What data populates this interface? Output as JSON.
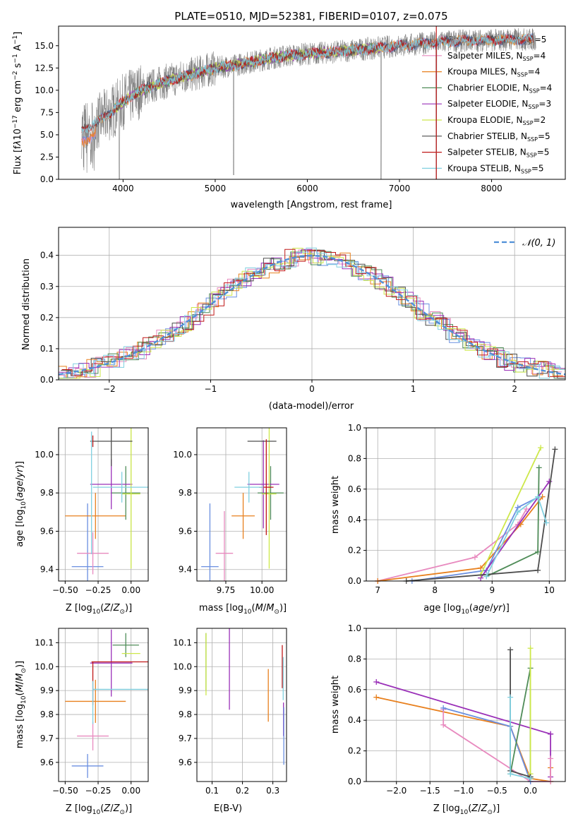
{
  "palette": {
    "chabrier_miles": "#6a8fe0",
    "salpeter_miles": "#e88abf",
    "kroupa_miles": "#e8801e",
    "chabrier_elodie": "#4f8c58",
    "salpeter_elodie": "#9a30b8",
    "kroupa_elodie": "#cde84a",
    "chabrier_stelib": "#4d4d4d",
    "salpeter_stelib": "#c01818",
    "kroupa_stelib": "#80d0e0",
    "spectrum": "#808080",
    "normal": "#5090d8",
    "grid": "#b0b0b0"
  },
  "legend_entries": [
    {
      "pre": "Chabrier MILES, N",
      "sub": "SSP",
      "post": "=5"
    },
    {
      "pre": "Salpeter MILES, N",
      "sub": "SSP",
      "post": "=4"
    },
    {
      "pre": "Kroupa MILES, N",
      "sub": "SSP",
      "post": "=4"
    },
    {
      "pre": "Chabrier ELODIE, N",
      "sub": "SSP",
      "post": "=4"
    },
    {
      "pre": "Salpeter ELODIE, N",
      "sub": "SSP",
      "post": "=3"
    },
    {
      "pre": "Kroupa ELODIE, N",
      "sub": "SSP",
      "post": "=2"
    },
    {
      "pre": "Chabrier STELIB, N",
      "sub": "SSP",
      "post": "=5"
    },
    {
      "pre": "Salpeter STELIB, N",
      "sub": "SSP",
      "post": "=5"
    },
    {
      "pre": "Kroupa STELIB, N",
      "sub": "SSP",
      "post": "=5"
    }
  ],
  "chart_data": [
    {
      "type": "line",
      "title": "PLATE=0510, MJD=52381, FIBERID=0107, z=0.075",
      "xlabel": "wavelength [Angstrom, rest frame]",
      "ylabel": "Flux [f_λ 10^-17 erg cm^-2 s^-1 A^-1]",
      "xlim": [
        3300,
        8800
      ],
      "ylim": [
        0,
        17.2
      ],
      "xticks": [
        "4000",
        "5000",
        "6000",
        "7000",
        "8000"
      ],
      "yticks": [
        "0.0",
        "2.5",
        "5.0",
        "7.5",
        "10.0",
        "12.5",
        "15.0"
      ],
      "continuum_x": [
        3550,
        3700,
        3800,
        3900,
        4000,
        4100,
        4200,
        4400,
        4600,
        4800,
        5000,
        5200,
        5400,
        5600,
        5800,
        6000,
        6200,
        6400,
        6600,
        6800,
        7000,
        7200,
        7400,
        7600,
        7800,
        8000,
        8200,
        8400
      ],
      "continuum_y": [
        5.5,
        6.3,
        7.0,
        7.8,
        8.7,
        9.4,
        10.0,
        10.8,
        11.4,
        11.9,
        12.5,
        12.8,
        13.2,
        13.6,
        13.9,
        14.1,
        14.2,
        14.4,
        14.6,
        14.8,
        15.0,
        15.2,
        15.4,
        15.5,
        15.6,
        15.6,
        15.7,
        15.7
      ],
      "spike_x": [
        3960,
        5200,
        6800,
        7400
      ],
      "spike_y": [
        0.0,
        0.5,
        0.0,
        0.0
      ],
      "legend": "upper-right",
      "grid": false
    },
    {
      "type": "histogram",
      "xlabel": "(data-model)/error",
      "ylabel": "Normed distribution",
      "xlim": [
        -2.5,
        2.5
      ],
      "ylim": [
        0,
        0.49
      ],
      "xticks": [
        "−2",
        "−1",
        "0",
        "1",
        "2"
      ],
      "yticks": [
        "0.0",
        "0.1",
        "0.2",
        "0.3",
        "0.4"
      ],
      "bin_edges_start": -2.5,
      "bin_width": 0.1,
      "normal_label_text": "N(0, 1)",
      "legend": "upper-right",
      "grid": true
    },
    {
      "type": "scatter",
      "xlabel": "Z [log10(Z/Z⊙)]",
      "ylabel": "age  [log10(age/yr)]",
      "xlim": [
        -0.55,
        0.13
      ],
      "ylim": [
        9.34,
        10.14
      ],
      "xticks": [
        {
          "v": -0.5,
          "t": "−0.50"
        },
        {
          "v": -0.25,
          "t": "−0.25"
        },
        {
          "v": 0.0,
          "t": "0.00"
        }
      ],
      "yticks": [
        {
          "v": 9.4,
          "t": "9.4"
        },
        {
          "v": 9.6,
          "t": "9.6"
        },
        {
          "v": 9.8,
          "t": "9.8"
        },
        {
          "v": 10.0,
          "t": "10.0"
        }
      ],
      "points": [
        {
          "s": "chabrier_miles",
          "x": -0.33,
          "y": 9.415,
          "xerr": 0.12,
          "yerr": 0.33
        },
        {
          "s": "salpeter_miles",
          "x": -0.29,
          "y": 9.485,
          "xerr": 0.12,
          "yerr": 0.11
        },
        {
          "s": "kroupa_miles",
          "x": -0.27,
          "y": 9.68,
          "xerr": 0.23,
          "yerr": 0.12
        },
        {
          "s": "chabrier_elodie",
          "x": -0.04,
          "y": 9.8,
          "xerr": 0.11,
          "yerr": 0.14
        },
        {
          "s": "salpeter_elodie",
          "x": -0.15,
          "y": 9.845,
          "xerr": 0.16,
          "yerr": 0.13
        },
        {
          "s": "kroupa_elodie",
          "x": 0.0,
          "y": 9.795,
          "xerr": 0.07,
          "yerr": 0.39
        },
        {
          "s": "chabrier_stelib",
          "x": -0.15,
          "y": 10.07,
          "xerr": 0.16,
          "yerr": 0.13
        },
        {
          "s": "salpeter_stelib",
          "x": -0.29,
          "y": 10.07,
          "xerr": 0.0,
          "yerr": 0.03
        },
        {
          "s": "kroupa_stelib",
          "x": -0.07,
          "y": 9.83,
          "xerr": 0.22,
          "yerr": 0.08
        },
        {
          "s": "kroupa_stelib",
          "x": -0.3,
          "y": 9.8,
          "xerr": 0.0,
          "yerr": 0.32
        }
      ],
      "grid": true
    },
    {
      "type": "scatter",
      "xlabel": "mass [log10(M/M⊙)]",
      "ylabel": "",
      "xlim": [
        9.55,
        10.17
      ],
      "ylim": [
        9.34,
        10.14
      ],
      "xticks": [
        {
          "v": 9.75,
          "t": "9.75"
        },
        {
          "v": 10.0,
          "t": "10.00"
        }
      ],
      "yticks": [
        {
          "v": 9.4,
          "t": "9.4"
        },
        {
          "v": 9.6,
          "t": "9.6"
        },
        {
          "v": 9.8,
          "t": "9.8"
        },
        {
          "v": 10.0,
          "t": "10.0"
        }
      ],
      "points": [
        {
          "s": "chabrier_miles",
          "x": 9.64,
          "y": 9.415,
          "xerr": 0.06,
          "yerr": 0.33
        },
        {
          "s": "salpeter_miles",
          "x": 9.74,
          "y": 9.485,
          "xerr": 0.06,
          "yerr": 0.22
        },
        {
          "s": "kroupa_miles",
          "x": 9.87,
          "y": 9.68,
          "xerr": 0.08,
          "yerr": 0.12
        },
        {
          "s": "chabrier_elodie",
          "x": 10.06,
          "y": 9.8,
          "xerr": 0.09,
          "yerr": 0.14
        },
        {
          "s": "salpeter_elodie",
          "x": 10.01,
          "y": 9.845,
          "xerr": 0.11,
          "yerr": 0.23
        },
        {
          "s": "kroupa_elodie",
          "x": 10.05,
          "y": 9.795,
          "xerr": 0.05,
          "yerr": 0.39
        },
        {
          "s": "chabrier_stelib",
          "x": 10.0,
          "y": 10.07,
          "xerr": 0.1,
          "yerr": 0.0
        },
        {
          "s": "salpeter_stelib",
          "x": 10.03,
          "y": 9.83,
          "xerr": 0.05,
          "yerr": 0.25
        },
        {
          "s": "kroupa_stelib",
          "x": 9.91,
          "y": 9.83,
          "xerr": 0.1,
          "yerr": 0.08
        }
      ],
      "grid": true
    },
    {
      "type": "line",
      "xlabel": "age  [log10(age/yr)]",
      "ylabel": "mass weight",
      "xlim": [
        6.8,
        10.28
      ],
      "ylim": [
        0,
        1.0
      ],
      "xticks": [
        {
          "v": 7,
          "t": "7"
        },
        {
          "v": 8,
          "t": "8"
        },
        {
          "v": 9,
          "t": "9"
        },
        {
          "v": 10,
          "t": "10"
        }
      ],
      "yticks": [
        {
          "v": 0,
          "t": "0.0"
        },
        {
          "v": 0.2,
          "t": "0.2"
        },
        {
          "v": 0.4,
          "t": "0.4"
        },
        {
          "v": 0.6,
          "t": "0.6"
        },
        {
          "v": 0.8,
          "t": "0.8"
        },
        {
          "v": 1.0,
          "t": "1.0"
        }
      ],
      "series": [
        {
          "s": "salpeter_miles",
          "x": [
            7.0,
            8.7,
            9.45,
            9.6
          ],
          "y": [
            0.0,
            0.155,
            0.37,
            0.47
          ]
        },
        {
          "s": "kroupa_miles",
          "x": [
            7.0,
            8.8,
            9.5,
            9.88
          ],
          "y": [
            0.0,
            0.085,
            0.37,
            0.55
          ]
        },
        {
          "s": "chabrier_miles",
          "x": [
            7.6,
            8.9,
            9.45,
            9.82
          ],
          "y": [
            0.0,
            0.07,
            0.48,
            0.55
          ]
        },
        {
          "s": "chabrier_elodie",
          "x": [
            8.9,
            9.8,
            9.82
          ],
          "y": [
            0.03,
            0.19,
            0.74
          ]
        },
        {
          "s": "salpeter_elodie",
          "x": [
            8.8,
            10.0
          ],
          "y": [
            0.02,
            0.65
          ]
        },
        {
          "s": "kroupa_elodie",
          "x": [
            8.8,
            9.85
          ],
          "y": [
            0.04,
            0.87
          ]
        },
        {
          "s": "chabrier_stelib",
          "x": [
            7.5,
            9.8,
            10.1
          ],
          "y": [
            0.0,
            0.07,
            0.86
          ]
        },
        {
          "s": "kroupa_stelib",
          "x": [
            8.9,
            9.45,
            9.8,
            9.95
          ],
          "y": [
            0.03,
            0.45,
            0.55,
            0.38
          ]
        }
      ],
      "grid": true
    },
    {
      "type": "scatter",
      "xlabel": "Z [log10(Z/Z⊙)]",
      "ylabel": "mass [log10(M/M⊙)]",
      "xlim": [
        -0.55,
        0.13
      ],
      "ylim": [
        9.52,
        10.16
      ],
      "xticks": [
        {
          "v": -0.5,
          "t": "−0.50"
        },
        {
          "v": -0.25,
          "t": "−0.25"
        },
        {
          "v": 0.0,
          "t": "0.00"
        }
      ],
      "yticks": [
        {
          "v": 9.6,
          "t": "9.6"
        },
        {
          "v": 9.7,
          "t": "9.7"
        },
        {
          "v": 9.8,
          "t": "9.8"
        },
        {
          "v": 9.9,
          "t": "9.9"
        },
        {
          "v": 10.0,
          "t": "10.0"
        },
        {
          "v": 10.1,
          "t": "10.1"
        }
      ],
      "points": [
        {
          "s": "chabrier_miles",
          "x": -0.33,
          "y": 9.585,
          "xerr": 0.12,
          "yerr": 0.05
        },
        {
          "s": "salpeter_miles",
          "x": -0.29,
          "y": 9.71,
          "xerr": 0.12,
          "yerr": 0.06
        },
        {
          "s": "kroupa_miles",
          "x": -0.27,
          "y": 9.855,
          "xerr": 0.23,
          "yerr": 0.09
        },
        {
          "s": "chabrier_elodie",
          "x": -0.04,
          "y": 10.09,
          "xerr": 0.1,
          "yerr": 0.05
        },
        {
          "s": "salpeter_elodie",
          "x": -0.15,
          "y": 10.015,
          "xerr": 0.16,
          "yerr": 0.14
        },
        {
          "s": "kroupa_elodie",
          "x": 0.0,
          "y": 10.055,
          "xerr": 0.07,
          "yerr": 0.0
        },
        {
          "s": "chabrier_stelib",
          "x": -0.15,
          "y": 10.02,
          "xerr": 0.0,
          "yerr": 0.0
        },
        {
          "s": "salpeter_stelib",
          "x": -0.08,
          "y": 10.02,
          "xerr": 0.22,
          "yerr": 0.0
        },
        {
          "s": "kroupa_stelib",
          "x": -0.07,
          "y": 9.905,
          "xerr": 0.22,
          "yerr": 0.0
        },
        {
          "s": "salpeter_stelib",
          "x": -0.29,
          "y": 9.93,
          "xerr": 0.0,
          "yerr": 0.09
        },
        {
          "s": "kroupa_stelib",
          "x": -0.29,
          "y": 9.85,
          "xerr": 0.0,
          "yerr": 0.09
        }
      ],
      "grid": true
    },
    {
      "type": "scatter",
      "xlabel": "E(B-V)",
      "ylabel": "",
      "xlim": [
        0.05,
        0.345
      ],
      "ylim": [
        9.52,
        10.16
      ],
      "xticks": [
        {
          "v": 0.1,
          "t": "0.1"
        },
        {
          "v": 0.2,
          "t": "0.2"
        },
        {
          "v": 0.3,
          "t": "0.3"
        }
      ],
      "yticks": [
        {
          "v": 9.6,
          "t": "9.6"
        },
        {
          "v": 9.7,
          "t": "9.7"
        },
        {
          "v": 9.8,
          "t": "9.8"
        },
        {
          "v": 9.9,
          "t": "9.9"
        },
        {
          "v": 10.0,
          "t": "10.0"
        },
        {
          "v": 10.1,
          "t": "10.1"
        }
      ],
      "points": [
        {
          "s": "chabrier_elodie",
          "x": 0.08,
          "y": 10.02,
          "xerr": 0,
          "yerr": 0.12
        },
        {
          "s": "kroupa_elodie",
          "x": 0.08,
          "y": 10.01,
          "xerr": 0,
          "yerr": 0.13
        },
        {
          "s": "salpeter_elodie",
          "x": 0.157,
          "y": 9.99,
          "xerr": 0,
          "yerr": 0.17
        },
        {
          "s": "kroupa_miles",
          "x": 0.285,
          "y": 9.88,
          "xerr": 0,
          "yerr": 0.11
        },
        {
          "s": "salpeter_stelib",
          "x": 0.331,
          "y": 10.0,
          "xerr": 0,
          "yerr": 0.09
        },
        {
          "s": "kroupa_stelib",
          "x": 0.334,
          "y": 9.95,
          "xerr": 0,
          "yerr": 0.09
        },
        {
          "s": "salpeter_elodie",
          "x": 0.335,
          "y": 9.78,
          "xerr": 0,
          "yerr": 0.07
        },
        {
          "s": "chabrier_miles",
          "x": 0.336,
          "y": 9.71,
          "xerr": 0,
          "yerr": 0.12
        }
      ],
      "grid": true
    },
    {
      "type": "line",
      "xlabel": "Z [log10(Z/Z⊙)]",
      "ylabel": "mass weight",
      "xlim": [
        -2.45,
        0.52
      ],
      "ylim": [
        0,
        1.0
      ],
      "xticks": [
        {
          "v": -2.0,
          "t": "−2.0"
        },
        {
          "v": -1.5,
          "t": "−1.5"
        },
        {
          "v": -1.0,
          "t": "−1.0"
        },
        {
          "v": -0.5,
          "t": "−0.5"
        },
        {
          "v": 0.0,
          "t": "0.0"
        }
      ],
      "yticks": [
        {
          "v": 0,
          "t": "0.0"
        },
        {
          "v": 0.2,
          "t": "0.2"
        },
        {
          "v": 0.4,
          "t": "0.4"
        },
        {
          "v": 0.6,
          "t": "0.6"
        },
        {
          "v": 0.8,
          "t": "0.8"
        },
        {
          "v": 1.0,
          "t": "1.0"
        }
      ],
      "series": [
        {
          "s": "salpeter_elodie",
          "x": [
            -2.3,
            0.3,
            0.3,
            0.3
          ],
          "y": [
            0.65,
            0.31,
            0.03,
            0.31
          ]
        },
        {
          "s": "kroupa_miles",
          "x": [
            -2.3,
            -0.3,
            0.0,
            0.3,
            0.3
          ],
          "y": [
            0.55,
            0.36,
            0.02,
            0.0,
            0.09
          ]
        },
        {
          "s": "salpeter_miles",
          "x": [
            -1.3,
            -1.3,
            0.0,
            0.3,
            0.3
          ],
          "y": [
            0.47,
            0.37,
            0.0,
            0.0,
            0.15
          ]
        },
        {
          "s": "chabrier_miles",
          "x": [
            -1.3,
            -0.3,
            0.0
          ],
          "y": [
            0.48,
            0.36,
            0.0
          ]
        },
        {
          "s": "chabrier_elodie",
          "x": [
            -0.3,
            0.0,
            0.0
          ],
          "y": [
            0.05,
            0.74,
            0.03
          ]
        },
        {
          "s": "kroupa_elodie",
          "x": [
            0.0,
            0.0
          ],
          "y": [
            0.05,
            0.87
          ]
        },
        {
          "s": "chabrier_stelib",
          "x": [
            -0.3,
            -0.3,
            0.0
          ],
          "y": [
            0.86,
            0.07,
            0.03
          ]
        },
        {
          "s": "kroupa_stelib",
          "x": [
            -0.3,
            -0.3,
            0.0
          ],
          "y": [
            0.55,
            0.05,
            0.02
          ]
        }
      ],
      "grid": true
    }
  ]
}
